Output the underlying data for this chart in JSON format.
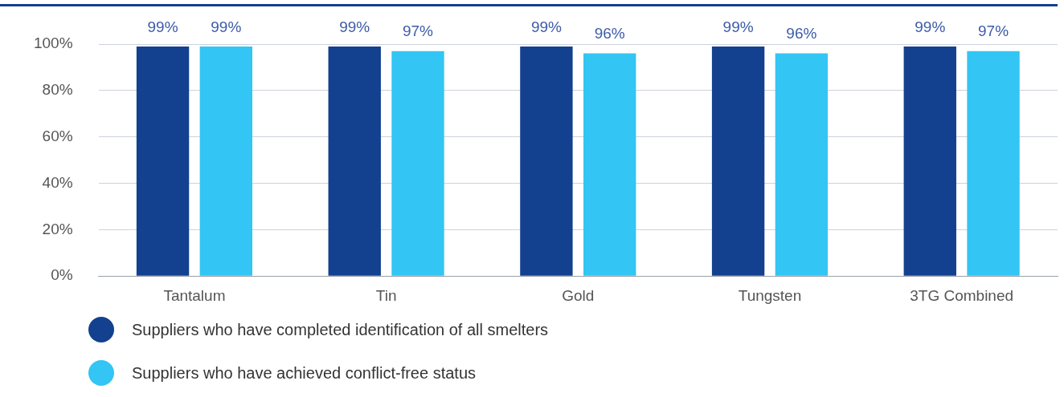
{
  "chart_data": {
    "type": "bar",
    "categories": [
      "Tantalum",
      "Tin",
      "Gold",
      "Tungsten",
      "3TG Combined"
    ],
    "series": [
      {
        "name": "Suppliers who have completed identification of all smelters",
        "color": "#13408f",
        "values": [
          99,
          99,
          99,
          99,
          99
        ],
        "value_labels": [
          "99%",
          "99%",
          "99%",
          "99%",
          "99%"
        ]
      },
      {
        "name": "Suppliers who have achieved conflict-free status",
        "color": "#33c5f3",
        "values": [
          99,
          97,
          96,
          96,
          97
        ],
        "value_labels": [
          "99%",
          "97%",
          "96%",
          "96%",
          "97%"
        ]
      }
    ],
    "ylim": [
      0,
      100
    ],
    "yticks": [
      {
        "value": 0,
        "label": "0%"
      },
      {
        "value": 20,
        "label": "20%"
      },
      {
        "value": 40,
        "label": "40%"
      },
      {
        "value": 60,
        "label": "60%"
      },
      {
        "value": 80,
        "label": "80%"
      },
      {
        "value": 100,
        "label": "100%"
      }
    ],
    "grid": "y",
    "legend": "bottom left"
  }
}
